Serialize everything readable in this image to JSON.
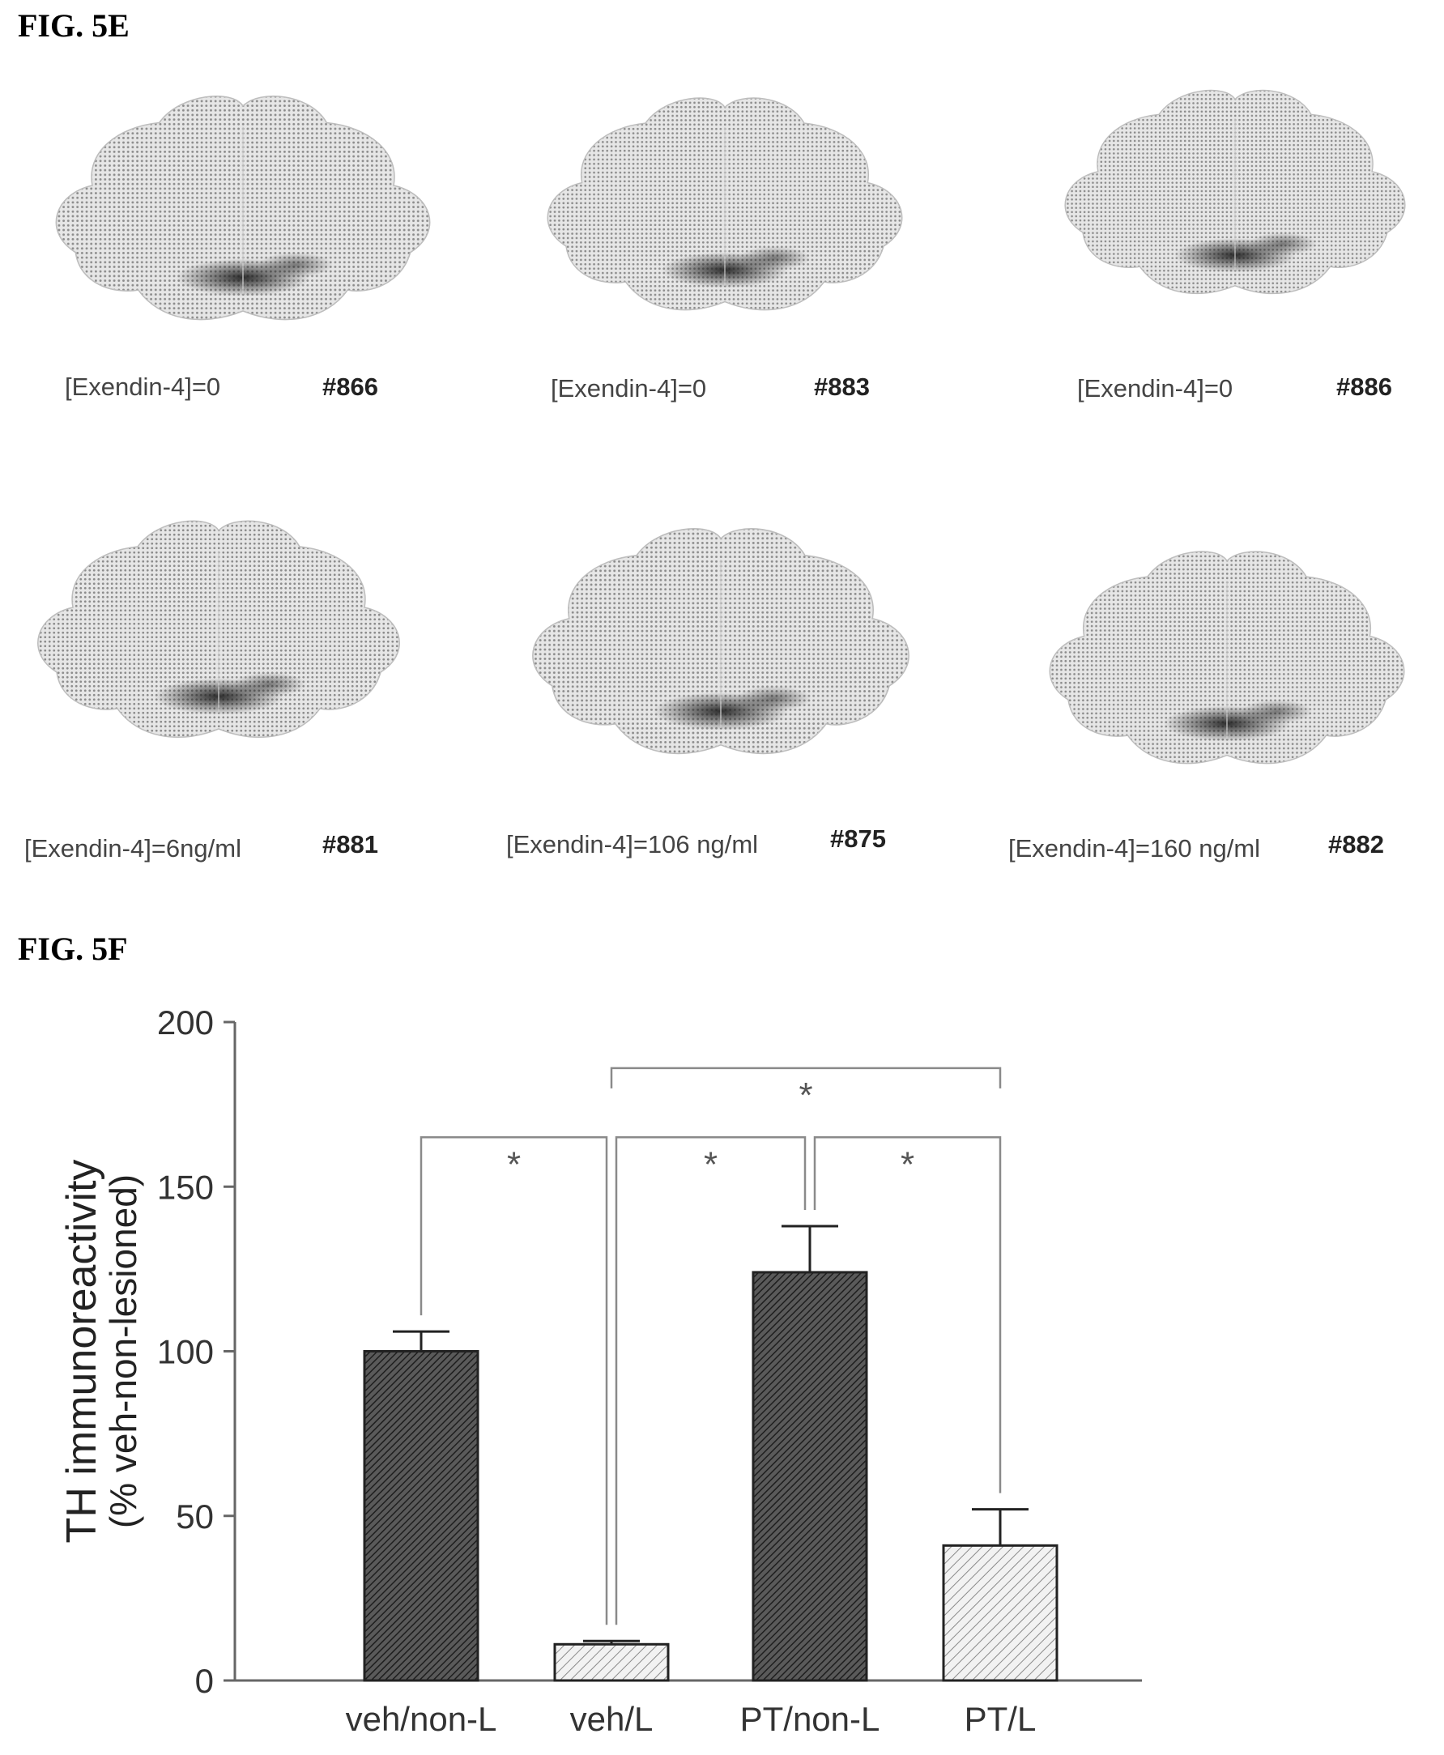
{
  "fig5e": {
    "label": "FIG. 5E",
    "panels": [
      {
        "concentration": "[Exendin-4]=0",
        "id": "#866"
      },
      {
        "concentration": "[Exendin-4]=0",
        "id": "#883"
      },
      {
        "concentration": "[Exendin-4]=0",
        "id": "#886"
      },
      {
        "concentration": "[Exendin-4]=6ng/ml",
        "id": "#881"
      },
      {
        "concentration": "[Exendin-4]=106 ng/ml",
        "id": "#875"
      },
      {
        "concentration": "[Exendin-4]=160 ng/ml",
        "id": "#882"
      }
    ]
  },
  "fig5f": {
    "label": "FIG. 5F"
  },
  "chart_data": {
    "type": "bar",
    "categories": [
      "veh/non-L",
      "veh/L",
      "PT/non-L",
      "PT/L"
    ],
    "values": [
      100,
      11,
      124,
      41
    ],
    "errors": [
      6,
      1,
      14,
      11
    ],
    "bar_styles": [
      "dark-hatched",
      "light-hatched",
      "dark-hatched",
      "light-hatched"
    ],
    "ylabel_line1": "TH immunoreactivity",
    "ylabel_line2": "(% veh-non-lesioned)",
    "ylim": [
      0,
      200
    ],
    "yticks": [
      0,
      50,
      100,
      150,
      200
    ],
    "grid": false,
    "significance": [
      {
        "from": 0,
        "to": 1,
        "label": "*",
        "level": 1
      },
      {
        "from": 1,
        "to": 2,
        "label": "*",
        "level": 1
      },
      {
        "from": 2,
        "to": 3,
        "label": "*",
        "level": 1
      },
      {
        "from": 1,
        "to": 3,
        "label": "*",
        "level": 2
      }
    ],
    "colors": {
      "dark_fill": "#3a3a3a",
      "light_fill": "#cfcfcf",
      "axis": "#666666"
    }
  }
}
